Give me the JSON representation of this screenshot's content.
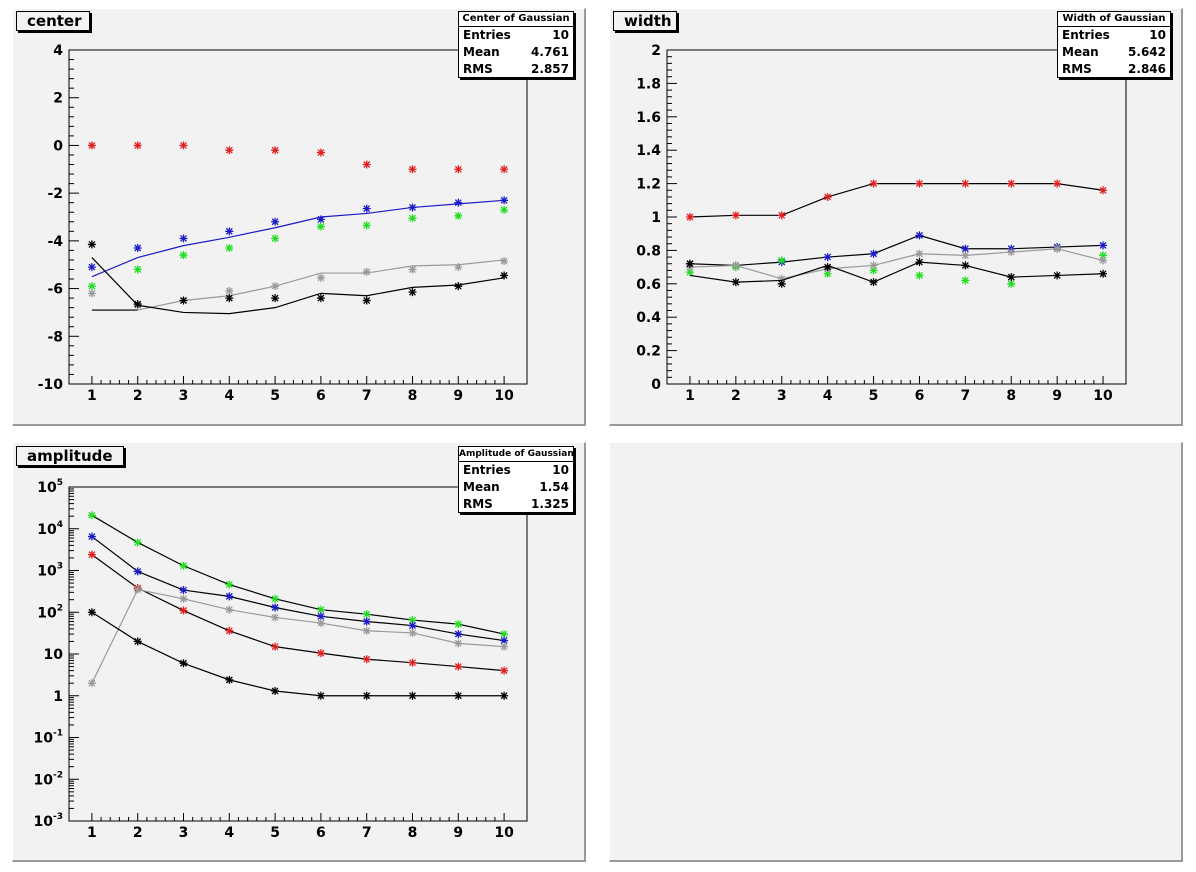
{
  "pads": [
    {
      "title": "center"
    },
    {
      "title": "width"
    },
    {
      "title": "amplitude"
    },
    {
      "title": ""
    }
  ],
  "colors": {
    "red": "#e02020",
    "blue": "#1a1ac8",
    "green": "#22dd22",
    "gray": "#9a9a9a",
    "black": "#000000"
  },
  "chart_data": [
    {
      "type": "line",
      "title": "center",
      "x": [
        1,
        2,
        3,
        4,
        5,
        6,
        7,
        8,
        9,
        10
      ],
      "ylim": [
        -10,
        4
      ],
      "y_ticks": [
        "4",
        "2",
        "0",
        "-2",
        "-4",
        "-6",
        "-8",
        "-10"
      ],
      "x_ticks": [
        "1",
        "2",
        "3",
        "4",
        "5",
        "6",
        "7",
        "8",
        "9",
        "10"
      ],
      "stats": {
        "title": "Center of Gaussian",
        "rows": [
          [
            "Entries",
            "10"
          ],
          [
            "Mean",
            "4.761"
          ],
          [
            "RMS",
            "2.857"
          ]
        ]
      },
      "series": [
        {
          "color": "red",
          "markers": [
            0,
            0,
            0,
            -0.2,
            -0.2,
            -0.3,
            -0.8,
            -1.0,
            -1.0,
            -1.0
          ],
          "line": null
        },
        {
          "color": "blue",
          "markers": [
            -5.1,
            -4.3,
            -3.9,
            -3.6,
            -3.2,
            -3.1,
            -2.65,
            -2.6,
            -2.4,
            -2.3
          ],
          "line": [
            -5.5,
            -4.7,
            -4.2,
            -3.85,
            -3.45,
            -3.0,
            -2.85,
            -2.6,
            -2.45,
            -2.3
          ]
        },
        {
          "color": "green",
          "markers": [
            -5.9,
            -5.2,
            -4.6,
            -4.3,
            -3.9,
            -3.4,
            -3.35,
            -3.05,
            -2.95,
            -2.7
          ],
          "line": null
        },
        {
          "color": "gray",
          "markers": [
            -6.2,
            -6.7,
            -6.5,
            -6.1,
            -5.9,
            -5.55,
            -5.3,
            -5.2,
            -5.1,
            -4.85
          ],
          "line": [
            -6.9,
            -6.9,
            -6.5,
            -6.3,
            -5.9,
            -5.35,
            -5.35,
            -5.05,
            -5.0,
            -4.8
          ]
        },
        {
          "color": "black",
          "markers": [
            -4.15,
            -6.65,
            -6.5,
            -6.4,
            -6.4,
            -6.4,
            -6.5,
            -6.15,
            -5.9,
            -5.45
          ],
          "line": [
            -4.7,
            -6.7,
            -7.0,
            -7.05,
            -6.8,
            -6.2,
            -6.3,
            -5.95,
            -5.85,
            -5.55
          ]
        },
        {
          "color": "black",
          "markers": [],
          "line": [
            -6.9,
            -6.9
          ]
        }
      ]
    },
    {
      "type": "line",
      "title": "width",
      "x": [
        1,
        2,
        3,
        4,
        5,
        6,
        7,
        8,
        9,
        10
      ],
      "ylim": [
        0,
        2
      ],
      "y_ticks": [
        "0",
        "0.2",
        "0.4",
        "0.6",
        "0.8",
        "1",
        "1.2",
        "1.4",
        "1.6",
        "1.8",
        "2"
      ],
      "x_ticks": [
        "1",
        "2",
        "3",
        "4",
        "5",
        "6",
        "7",
        "8",
        "9",
        "10"
      ],
      "stats": {
        "title": "Width of Gaussian",
        "rows": [
          [
            "Entries",
            "10"
          ],
          [
            "Mean",
            "5.642"
          ],
          [
            "RMS",
            "2.846"
          ]
        ]
      },
      "series": [
        {
          "color": "red",
          "markers": [
            1.0,
            1.01,
            1.01,
            1.12,
            1.2,
            1.2,
            1.2,
            1.2,
            1.2,
            1.16
          ],
          "line": [
            1.0,
            1.01,
            1.01,
            1.12,
            1.2,
            1.2,
            1.2,
            1.2,
            1.2,
            1.16
          ]
        },
        {
          "color": "blue",
          "markers": [
            0.72,
            0.71,
            0.73,
            0.76,
            0.78,
            0.89,
            0.81,
            0.81,
            0.82,
            0.83
          ],
          "line": [
            0.72,
            0.71,
            0.73,
            0.76,
            0.78,
            0.89,
            0.81,
            0.81,
            0.82,
            0.83
          ]
        },
        {
          "color": "green",
          "markers": [
            0.67,
            0.7,
            0.74,
            0.66,
            0.68,
            0.65,
            0.62,
            0.6,
            0.81,
            0.77
          ],
          "line": null
        },
        {
          "color": "gray",
          "markers": [
            0.7,
            0.71,
            0.63,
            0.69,
            0.71,
            0.78,
            0.77,
            0.79,
            0.81,
            0.74
          ],
          "line": [
            0.7,
            0.71,
            0.63,
            0.69,
            0.71,
            0.78,
            0.77,
            0.79,
            0.81,
            0.74
          ]
        },
        {
          "color": "black",
          "markers": [
            0.72,
            0.61,
            0.6,
            0.7,
            0.61,
            0.73,
            0.71,
            0.64,
            0.65,
            0.66
          ],
          "line": [
            0.65,
            0.61,
            0.62,
            0.71,
            0.61,
            0.73,
            0.71,
            0.64,
            0.65,
            0.66
          ]
        }
      ]
    },
    {
      "type": "line",
      "title": "amplitude",
      "log_y": true,
      "x": [
        1,
        2,
        3,
        4,
        5,
        6,
        7,
        8,
        9,
        10
      ],
      "ylim": [
        0.001,
        100000
      ],
      "y_ticks": [
        {
          "base": "10",
          "exp": "5",
          "v": 100000
        },
        {
          "base": "10",
          "exp": "4",
          "v": 10000
        },
        {
          "base": "10",
          "exp": "3",
          "v": 1000
        },
        {
          "base": "10",
          "exp": "2",
          "v": 100
        },
        {
          "base": "10",
          "exp": "",
          "v": 10
        },
        {
          "base": "1",
          "exp": "",
          "v": 1
        },
        {
          "base": "10",
          "exp": "-1",
          "v": 0.1
        },
        {
          "base": "10",
          "exp": "-2",
          "v": 0.01
        },
        {
          "base": "10",
          "exp": "-3",
          "v": 0.001
        }
      ],
      "x_ticks": [
        "1",
        "2",
        "3",
        "4",
        "5",
        "6",
        "7",
        "8",
        "9",
        "10"
      ],
      "stats": {
        "title": "Amplitude of Gaussian",
        "rows": [
          [
            "Entries",
            "10"
          ],
          [
            "Mean",
            "1.54"
          ],
          [
            "RMS",
            "1.325"
          ]
        ]
      },
      "series": [
        {
          "color": "green",
          "markers": [
            21000,
            4700,
            1300,
            460,
            210,
            115,
            90,
            65,
            52,
            30
          ],
          "line": [
            21000,
            4700,
            1300,
            460,
            210,
            115,
            90,
            65,
            52,
            30
          ]
        },
        {
          "color": "blue",
          "markers": [
            6500,
            950,
            340,
            240,
            130,
            80,
            60,
            48,
            30,
            21
          ],
          "line": [
            6500,
            950,
            340,
            240,
            130,
            80,
            60,
            48,
            30,
            21
          ]
        },
        {
          "color": "red",
          "markers": [
            2400,
            380,
            110,
            36,
            15,
            10.5,
            7.5,
            6.2,
            5,
            4
          ],
          "line": [
            2400,
            380,
            110,
            36,
            15,
            10.5,
            7.5,
            6.2,
            5,
            4
          ]
        },
        {
          "color": "gray",
          "markers": [
            2,
            350,
            210,
            115,
            75,
            55,
            36,
            32,
            18,
            15
          ],
          "line": [
            2,
            350,
            210,
            115,
            75,
            55,
            36,
            32,
            18,
            15
          ]
        },
        {
          "color": "black",
          "markers": [
            100,
            20,
            6,
            2.4,
            1.3,
            1,
            1,
            1,
            1,
            1
          ],
          "line": [
            100,
            20,
            6,
            2.4,
            1.3,
            1,
            1,
            1,
            1,
            1
          ]
        }
      ]
    }
  ]
}
